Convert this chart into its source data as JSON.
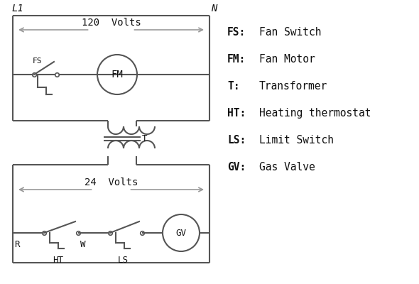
{
  "background_color": "#ffffff",
  "line_color": "#555555",
  "text_color": "#111111",
  "legend_items": [
    [
      "FS:",
      "Fan Switch"
    ],
    [
      "FM:",
      "Fan Motor"
    ],
    [
      "T:",
      "Transformer"
    ],
    [
      "HT:",
      "Heating thermostat"
    ],
    [
      "LS:",
      "Limit Switch"
    ],
    [
      "GV:",
      "Gas Valve"
    ]
  ]
}
